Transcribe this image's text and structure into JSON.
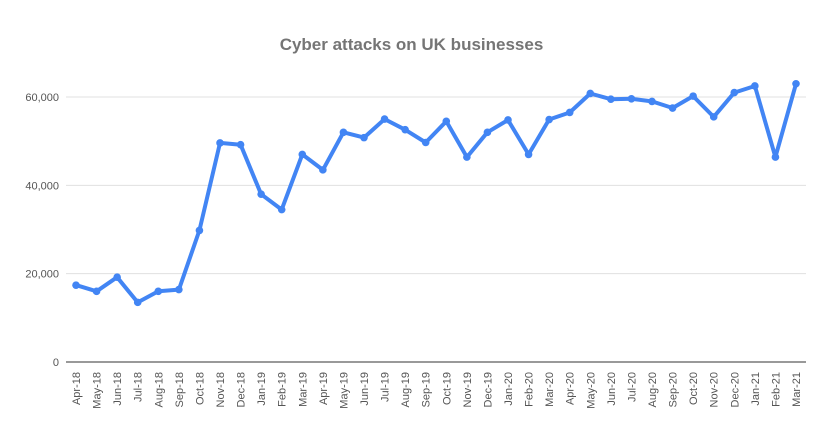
{
  "chart_data": {
    "type": "line",
    "title": "Cyber attacks on UK businesses",
    "xlabel": "",
    "ylabel": "",
    "ylim": [
      0,
      60000
    ],
    "yticks": [
      0,
      20000,
      40000,
      60000
    ],
    "ytick_labels": [
      "0",
      "20,000",
      "40,000",
      "60,000"
    ],
    "grid": true,
    "legend": "none",
    "color": "#4285f4",
    "categories": [
      "Apr-18",
      "May-18",
      "Jun-18",
      "Jul-18",
      "Aug-18",
      "Sep-18",
      "Oct-18",
      "Nov-18",
      "Dec-18",
      "Jan-19",
      "Feb-19",
      "Mar-19",
      "Apr-19",
      "May-19",
      "Jun-19",
      "Jul-19",
      "Aug-19",
      "Sep-19",
      "Oct-19",
      "Nov-19",
      "Dec-19",
      "Jan-20",
      "Feb-20",
      "Mar-20",
      "Apr-20",
      "May-20",
      "Jun-20",
      "Jul-20",
      "Aug-20",
      "Sep-20",
      "Oct-20",
      "Nov-20",
      "Dec-20",
      "Jan-21",
      "Feb-21",
      "Mar-21"
    ],
    "values": [
      17400,
      16000,
      19200,
      13500,
      16000,
      16400,
      29800,
      49600,
      49200,
      38000,
      34500,
      47000,
      43500,
      52000,
      50800,
      55000,
      52600,
      49700,
      54500,
      46400,
      52000,
      54800,
      47000,
      54900,
      56500,
      60800,
      59500,
      59600,
      59000,
      57500,
      60200,
      55500,
      61000,
      62500,
      46400,
      63000
    ]
  }
}
